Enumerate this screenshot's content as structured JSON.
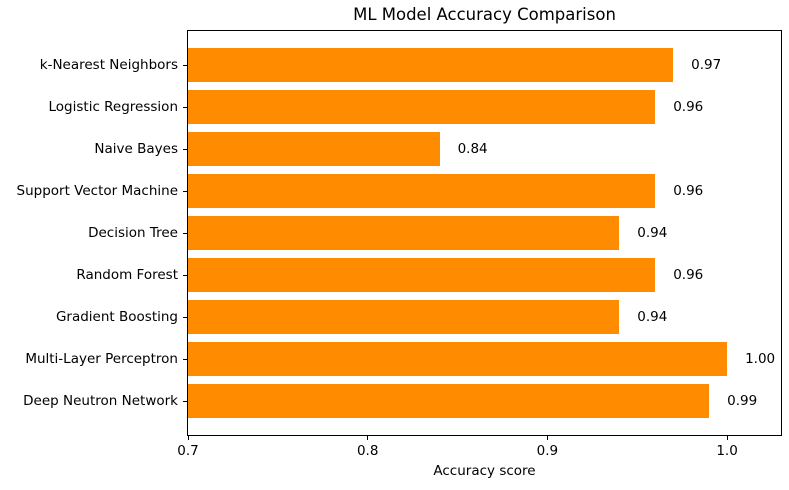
{
  "chart_data": {
    "type": "bar",
    "orientation": "horizontal",
    "title": "ML Model Accuracy Comparison",
    "xlabel": "Accuracy score",
    "ylabel": "",
    "categories": [
      "k-Nearest Neighbors",
      "Logistic Regression",
      "Naive Bayes",
      "Support Vector Machine",
      "Decision Tree",
      "Random Forest",
      "Gradient Boosting",
      "Multi-Layer Perceptron",
      "Deep Neutron Network"
    ],
    "values": [
      0.97,
      0.96,
      0.84,
      0.96,
      0.94,
      0.96,
      0.94,
      1.0,
      0.99
    ],
    "value_labels": [
      "0.97",
      "0.96",
      "0.84",
      "0.96",
      "0.94",
      "0.96",
      "0.94",
      "1.00",
      "0.99"
    ],
    "xlim": [
      0.7,
      1.03
    ],
    "x_ticks": [
      "0.7",
      "0.8",
      "0.9",
      "1.0"
    ],
    "x_tick_values": [
      0.7,
      0.8,
      0.9,
      1.0
    ],
    "bar_color": "#ff8c00",
    "text_color": "#000000",
    "background_color": "#ffffff",
    "grid": false,
    "legend": null
  }
}
